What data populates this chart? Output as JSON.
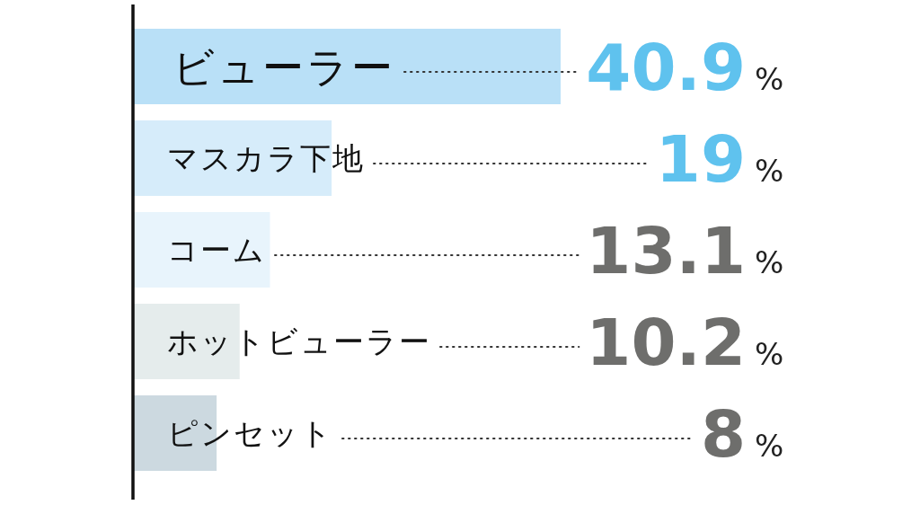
{
  "chart_data": {
    "type": "bar",
    "orientation": "horizontal",
    "categories": [
      "ビューラー",
      "マスカラ下地",
      "コーム",
      "ホットビューラー",
      "ピンセット"
    ],
    "values": [
      40.9,
      19,
      13.1,
      10.2,
      8
    ],
    "colors": [
      "#b9e0f7",
      "#d6ecfa",
      "#e8f4fc",
      "#e5ecec",
      "#ccd9e0"
    ],
    "value_labels": [
      "40.9%",
      "19%",
      "13.1%",
      "10.2%",
      "8%"
    ]
  }
}
